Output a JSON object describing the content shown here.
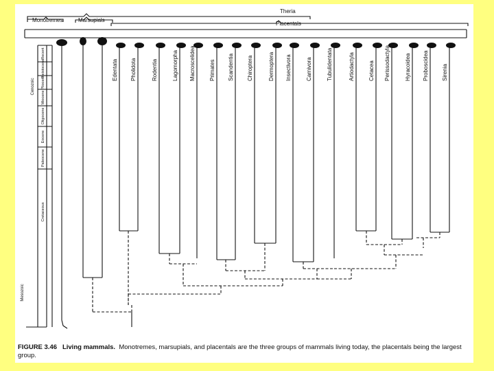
{
  "groups": {
    "theria": "Theria",
    "monotremes": "Monotremes",
    "marsupials": "Marsupials",
    "placentals": "Placentals"
  },
  "orders": [
    "Edentata",
    "Pholidota",
    "Rodentia",
    "Lagomorpha",
    "Macroscelidea",
    "Primates",
    "Scandentia",
    "Chiroptera",
    "Dermoptera",
    "Insectivora",
    "Carnivora",
    "Tubulidentata",
    "Artiodactyla",
    "Cetacea",
    "Perissodactyla",
    "Hyracoidea",
    "Proboscidea",
    "Sirenia"
  ],
  "time_scale": [
    "Recent",
    "Pleistocene",
    "Pliocene",
    "Miocene",
    "Oligocene",
    "Eocene",
    "Paleocene",
    "Cretaceous"
  ],
  "era_labels": [
    "Cenozoic",
    "Mesozoic"
  ],
  "caption": {
    "figure": "FIGURE 3.46",
    "title": "Living mammals.",
    "text": "Monotremes, marsupials, and placentals are the three groups of mammals living today, the placentals being the largest group."
  },
  "colors": {
    "background": "#ffff80",
    "ink": "#111111"
  }
}
